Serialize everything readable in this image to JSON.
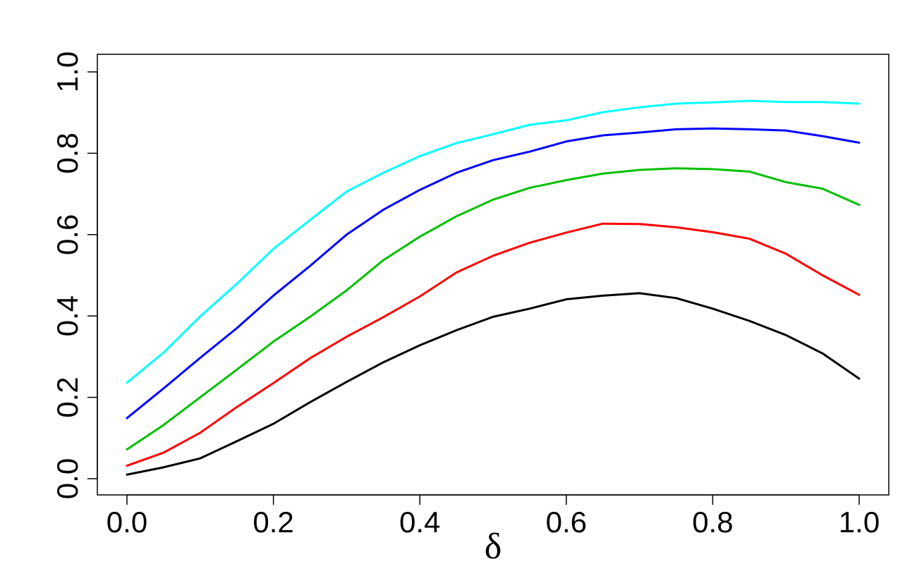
{
  "chart_data": {
    "type": "line",
    "title": "",
    "xlabel": "δ",
    "ylabel": "",
    "xlim": [
      0.0,
      1.0
    ],
    "ylim": [
      0.0,
      1.0
    ],
    "grid": false,
    "legend": "none",
    "x": [
      0.0,
      0.05,
      0.1,
      0.15,
      0.2,
      0.25,
      0.3,
      0.35,
      0.4,
      0.45,
      0.5,
      0.55,
      0.6,
      0.65,
      0.7,
      0.75,
      0.8,
      0.85,
      0.9,
      0.95,
      1.0
    ],
    "x_ticks": [
      "0.0",
      "0.2",
      "0.4",
      "0.6",
      "0.8",
      "1.0"
    ],
    "y_ticks": [
      "0.0",
      "0.2",
      "0.4",
      "0.6",
      "0.8",
      "1.0"
    ],
    "series": [
      {
        "color": "#000000",
        "values": [
          0.01,
          0.028,
          0.05,
          0.092,
          0.135,
          0.188,
          0.238,
          0.286,
          0.328,
          0.365,
          0.398,
          0.418,
          0.441,
          0.45,
          0.456,
          0.444,
          0.418,
          0.388,
          0.353,
          0.308,
          0.246
        ]
      },
      {
        "color": "#ff0000",
        "values": [
          0.032,
          0.064,
          0.113,
          0.176,
          0.235,
          0.296,
          0.349,
          0.397,
          0.448,
          0.507,
          0.548,
          0.58,
          0.605,
          0.627,
          0.626,
          0.618,
          0.606,
          0.59,
          0.553,
          0.5,
          0.452
        ]
      },
      {
        "color": "#00c000",
        "values": [
          0.072,
          0.132,
          0.2,
          0.268,
          0.337,
          0.398,
          0.463,
          0.537,
          0.595,
          0.645,
          0.686,
          0.715,
          0.734,
          0.75,
          0.759,
          0.763,
          0.761,
          0.755,
          0.729,
          0.713,
          0.673
        ]
      },
      {
        "color": "#0000ff",
        "values": [
          0.149,
          0.222,
          0.297,
          0.37,
          0.45,
          0.523,
          0.6,
          0.661,
          0.71,
          0.752,
          0.783,
          0.804,
          0.829,
          0.844,
          0.851,
          0.859,
          0.861,
          0.859,
          0.856,
          0.842,
          0.826
        ]
      },
      {
        "color": "#00ffff",
        "values": [
          0.236,
          0.31,
          0.399,
          0.479,
          0.565,
          0.636,
          0.706,
          0.752,
          0.793,
          0.825,
          0.847,
          0.87,
          0.881,
          0.901,
          0.913,
          0.922,
          0.925,
          0.929,
          0.926,
          0.926,
          0.922
        ]
      }
    ]
  }
}
